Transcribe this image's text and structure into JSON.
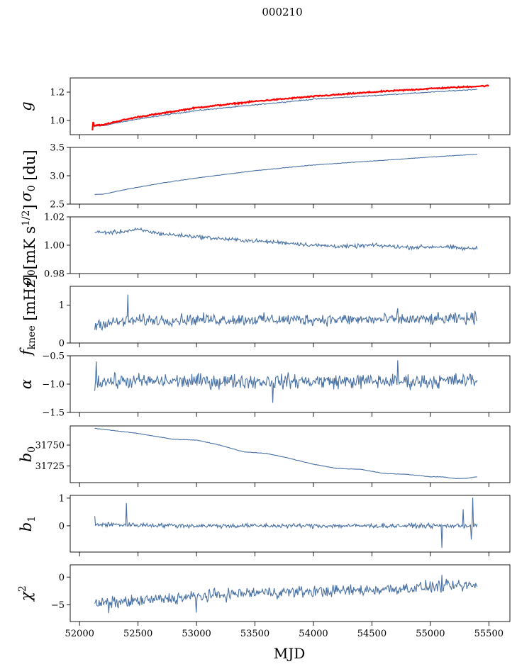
{
  "figure": {
    "title": "000210",
    "xlabel": "MJD"
  },
  "x_ticks": [
    52000,
    52500,
    53000,
    53500,
    54000,
    54500,
    55000,
    55500
  ],
  "x_tick_labels": [
    "52000",
    "52500",
    "53000",
    "53500",
    "54000",
    "54500",
    "55000",
    "55500"
  ],
  "colors": {
    "series": "#4a72a4",
    "gain_overlay": "#ff0000",
    "axis": "#000000"
  },
  "chart_data": [
    {
      "type": "line",
      "id": "gain",
      "ylabel_text": "g",
      "ylabel_sub": "",
      "ylim": [
        0.9,
        1.3
      ],
      "yticks": [
        1.0,
        1.2
      ],
      "ytick_labels": [
        "1.0",
        "1.2"
      ],
      "xlim": [
        51920,
        55680
      ],
      "series": [
        {
          "color": "#4a72a4",
          "noise": 0.003,
          "spikes": [],
          "points": [
            [
              52110,
              0.96
            ],
            [
              52200,
              0.962
            ],
            [
              52300,
              0.98
            ],
            [
              52500,
              1.01
            ],
            [
              52700,
              1.035
            ],
            [
              53000,
              1.07
            ],
            [
              53500,
              1.11
            ],
            [
              54000,
              1.15
            ],
            [
              54500,
              1.175
            ],
            [
              55000,
              1.2
            ],
            [
              55400,
              1.22
            ]
          ]
        },
        {
          "color": "#ff0000",
          "noise": 0.004,
          "width": 2.2,
          "spikes": [
            [
              52110,
              0.93
            ],
            [
              52115,
              0.99
            ]
          ],
          "points": [
            [
              52110,
              0.965
            ],
            [
              52200,
              0.968
            ],
            [
              52300,
              0.99
            ],
            [
              52500,
              1.025
            ],
            [
              52700,
              1.05
            ],
            [
              53000,
              1.09
            ],
            [
              53500,
              1.135
            ],
            [
              54000,
              1.17
            ],
            [
              54500,
              1.2
            ],
            [
              55000,
              1.225
            ],
            [
              55500,
              1.245
            ]
          ]
        }
      ]
    },
    {
      "type": "line",
      "id": "sigma0",
      "ylabel_text": "σ",
      "ylabel_sub": "0",
      "ylabel_unit": " [du]",
      "ylim": [
        2.5,
        3.5
      ],
      "yticks": [
        2.5,
        3.0,
        3.5
      ],
      "ytick_labels": [
        "2.5",
        "3.0",
        "3.5"
      ],
      "xlim": [
        51920,
        55680
      ],
      "series": [
        {
          "color": "#4a72a4",
          "noise": 0.004,
          "spikes": [],
          "points": [
            [
              52130,
              2.67
            ],
            [
              52200,
              2.675
            ],
            [
              52400,
              2.76
            ],
            [
              52700,
              2.87
            ],
            [
              53000,
              2.96
            ],
            [
              53500,
              3.09
            ],
            [
              54000,
              3.19
            ],
            [
              54500,
              3.26
            ],
            [
              55000,
              3.33
            ],
            [
              55400,
              3.38
            ]
          ]
        }
      ]
    },
    {
      "type": "line",
      "id": "sigma0_k",
      "ylabel_text": "σ",
      "ylabel_sub": "0",
      "ylabel_unit": "[mK s",
      "ylabel_sup": "1/2",
      "ylabel_close": "]",
      "ylim": [
        0.98,
        1.02
      ],
      "yticks": [
        0.98,
        1.0,
        1.02
      ],
      "ytick_labels": [
        "0.98",
        "1.00",
        "1.02"
      ],
      "xlim": [
        51920,
        55680
      ],
      "series": [
        {
          "color": "#4a72a4",
          "noise": 0.0012,
          "spikes": [],
          "points": [
            [
              52130,
              1.009
            ],
            [
              52300,
              1.009
            ],
            [
              52500,
              1.011
            ],
            [
              52700,
              1.008
            ],
            [
              53000,
              1.006
            ],
            [
              53300,
              1.004
            ],
            [
              53500,
              1.003
            ],
            [
              53800,
              1.0015
            ],
            [
              54000,
              1.0
            ],
            [
              54300,
              0.999
            ],
            [
              54500,
              1.0
            ],
            [
              54800,
              0.9985
            ],
            [
              55100,
              0.999
            ],
            [
              55300,
              0.9975
            ],
            [
              55400,
              0.998
            ]
          ]
        }
      ]
    },
    {
      "type": "line",
      "id": "fknee",
      "ylabel_text": "f",
      "ylabel_sub": "knee",
      "ylabel_unit": " [mHz]",
      "ylim": [
        0,
        1.5
      ],
      "yticks": [
        0,
        1
      ],
      "ytick_labels": [
        "0",
        "1"
      ],
      "xlim": [
        51920,
        55680
      ],
      "series": [
        {
          "color": "#4a72a4",
          "noise": 0.13,
          "spikes": [
            [
              52130,
              0.35
            ],
            [
              52410,
              1.28
            ],
            [
              54720,
              0.92
            ],
            [
              55380,
              0.85
            ]
          ],
          "points": [
            [
              52130,
              0.5
            ],
            [
              52500,
              0.6
            ],
            [
              53000,
              0.62
            ],
            [
              54000,
              0.62
            ],
            [
              55000,
              0.62
            ],
            [
              55400,
              0.65
            ]
          ]
        }
      ]
    },
    {
      "type": "line",
      "id": "alpha",
      "ylabel_text": "α",
      "ylabel_sub": "",
      "ylim": [
        -1.5,
        -0.5
      ],
      "yticks": [
        -1.5,
        -1.0,
        -0.5
      ],
      "ytick_labels": [
        "−1.5",
        "−1.0",
        "−0.5"
      ],
      "xlim": [
        51920,
        55680
      ],
      "series": [
        {
          "color": "#4a72a4",
          "noise": 0.11,
          "spikes": [
            [
              52130,
              -1.12
            ],
            [
              52140,
              -0.6
            ],
            [
              53650,
              -1.33
            ],
            [
              54720,
              -0.58
            ]
          ],
          "points": [
            [
              52130,
              -0.95
            ],
            [
              53000,
              -0.95
            ],
            [
              54000,
              -0.95
            ],
            [
              55000,
              -0.95
            ],
            [
              55400,
              -0.93
            ]
          ]
        }
      ]
    },
    {
      "type": "line",
      "id": "b0",
      "ylabel_text": "b",
      "ylabel_sub": "0",
      "ylim": [
        31705,
        31773
      ],
      "yticks": [
        31725,
        31750
      ],
      "ytick_labels": [
        "31725",
        "31750"
      ],
      "xlim": [
        51920,
        55680
      ],
      "series": [
        {
          "color": "#4a72a4",
          "noise": 0.25,
          "spikes": [],
          "points": [
            [
              52130,
              31770
            ],
            [
              52200,
              31769
            ],
            [
              52500,
              31764
            ],
            [
              52800,
              31757
            ],
            [
              53000,
              31756
            ],
            [
              53200,
              31750
            ],
            [
              53400,
              31742
            ],
            [
              53600,
              31740
            ],
            [
              53800,
              31734
            ],
            [
              54000,
              31727
            ],
            [
              54200,
              31722
            ],
            [
              54400,
              31721
            ],
            [
              54600,
              31716
            ],
            [
              54800,
              31715
            ],
            [
              55000,
              31712
            ],
            [
              55100,
              31712
            ],
            [
              55200,
              31710
            ],
            [
              55300,
              31710
            ],
            [
              55400,
              31712
            ]
          ]
        }
      ]
    },
    {
      "type": "line",
      "id": "b1",
      "ylabel_text": "b",
      "ylabel_sub": "1",
      "ylim": [
        -0.95,
        1.1
      ],
      "yticks": [
        0,
        1
      ],
      "ytick_labels": [
        "0",
        "1"
      ],
      "xlim": [
        51920,
        55680
      ],
      "series": [
        {
          "color": "#4a72a4",
          "noise": 0.07,
          "spikes": [
            [
              52130,
              0.35
            ],
            [
              52400,
              0.82
            ],
            [
              55100,
              -0.8
            ],
            [
              55360,
              1.02
            ],
            [
              55350,
              -0.5
            ],
            [
              55280,
              0.6
            ]
          ],
          "points": [
            [
              52130,
              0.05
            ],
            [
              53000,
              0.0
            ],
            [
              54000,
              0.0
            ],
            [
              55000,
              0.0
            ],
            [
              55400,
              0.0
            ]
          ]
        }
      ]
    },
    {
      "type": "line",
      "id": "chi2",
      "ylabel_text": "χ",
      "ylabel_sup": "2",
      "ylim": [
        -8,
        2.2
      ],
      "yticks": [
        -5,
        0
      ],
      "ytick_labels": [
        "−5",
        "0"
      ],
      "xlim": [
        51920,
        55680
      ],
      "series": [
        {
          "color": "#4a72a4",
          "noise": 0.9,
          "spikes": [
            [
              52250,
              -6.5
            ],
            [
              53000,
              -6.4
            ],
            [
              55100,
              0.4
            ]
          ],
          "points": [
            [
              52130,
              -4.8
            ],
            [
              52500,
              -4.3
            ],
            [
              53000,
              -3.5
            ],
            [
              53500,
              -2.8
            ],
            [
              54000,
              -2.6
            ],
            [
              54500,
              -2.3
            ],
            [
              55000,
              -1.8
            ],
            [
              55400,
              -1.5
            ]
          ]
        }
      ]
    }
  ]
}
